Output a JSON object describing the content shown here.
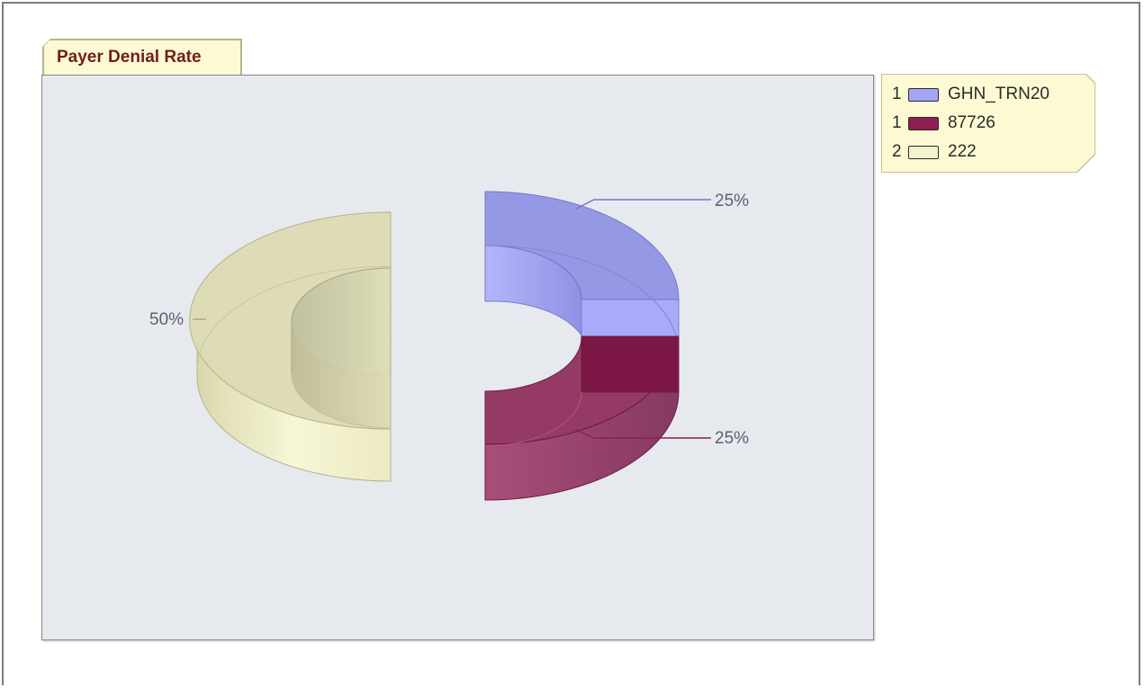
{
  "title": "Payer Denial Rate",
  "legend": [
    {
      "index": "1",
      "label": "GHN_TRN20",
      "color": "#a3a6f5"
    },
    {
      "index": "1",
      "label": "87726",
      "color": "#8e1f52"
    },
    {
      "index": "2",
      "label": "222",
      "color": "#f4f3cf"
    }
  ],
  "chart_data": {
    "type": "pie",
    "style": "3d-doughnut-exploded",
    "legend_position": "top-right",
    "categories": [
      "GHN_TRN20",
      "87726",
      "222"
    ],
    "values": [
      25,
      25,
      50
    ],
    "percent_labels": [
      "25%",
      "25%",
      "50%"
    ],
    "colors": [
      "#a3a6f5",
      "#8e1f52",
      "#eeedc8"
    ]
  }
}
